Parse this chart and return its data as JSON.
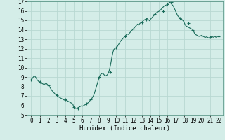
{
  "xlabel": "Humidex (Indice chaleur)",
  "bg_color": "#d4ede8",
  "grid_color": "#b8d8d2",
  "line_color": "#1a6b5a",
  "marker_color": "#1a6b5a",
  "xlim": [
    -0.5,
    22.5
  ],
  "ylim": [
    5,
    17
  ],
  "xticks": [
    0,
    1,
    2,
    3,
    4,
    5,
    6,
    7,
    8,
    9,
    10,
    11,
    12,
    13,
    14,
    15,
    16,
    17,
    18,
    19,
    20,
    21,
    22
  ],
  "yticks": [
    5,
    6,
    7,
    8,
    9,
    10,
    11,
    12,
    13,
    14,
    15,
    16,
    17
  ],
  "x": [
    0.0,
    0.1,
    0.2,
    0.3,
    0.4,
    0.5,
    0.6,
    0.7,
    0.8,
    0.9,
    1.0,
    1.1,
    1.2,
    1.3,
    1.4,
    1.5,
    1.6,
    1.7,
    1.8,
    1.9,
    2.0,
    2.1,
    2.2,
    2.3,
    2.4,
    2.5,
    2.6,
    2.7,
    2.8,
    2.9,
    3.0,
    3.1,
    3.2,
    3.3,
    3.4,
    3.5,
    3.6,
    3.7,
    3.8,
    3.9,
    4.0,
    4.1,
    4.2,
    4.3,
    4.4,
    4.5,
    4.6,
    4.7,
    4.8,
    4.9,
    5.0,
    5.1,
    5.2,
    5.3,
    5.4,
    5.5,
    5.6,
    5.7,
    5.8,
    5.9,
    6.0,
    6.1,
    6.2,
    6.3,
    6.4,
    6.5,
    6.6,
    6.7,
    6.8,
    6.9,
    7.0,
    7.1,
    7.2,
    7.3,
    7.4,
    7.5,
    7.6,
    7.7,
    7.8,
    7.9,
    8.0,
    8.1,
    8.2,
    8.3,
    8.4,
    8.5,
    8.6,
    8.7,
    8.8,
    8.9,
    9.0,
    9.1,
    9.2,
    9.3,
    9.4,
    9.5,
    9.6,
    9.7,
    9.8,
    9.9,
    10.0,
    10.1,
    10.2,
    10.3,
    10.4,
    10.5,
    10.6,
    10.7,
    10.8,
    10.9,
    11.0,
    11.1,
    11.2,
    11.3,
    11.4,
    11.5,
    11.6,
    11.7,
    11.8,
    11.9,
    12.0,
    12.1,
    12.2,
    12.3,
    12.4,
    12.5,
    12.6,
    12.7,
    12.8,
    12.9,
    13.0,
    13.1,
    13.2,
    13.3,
    13.4,
    13.5,
    13.6,
    13.7,
    13.8,
    13.9,
    14.0,
    14.1,
    14.2,
    14.3,
    14.4,
    14.5,
    14.6,
    14.7,
    14.8,
    14.9,
    15.0,
    15.1,
    15.2,
    15.3,
    15.4,
    15.5,
    15.6,
    15.7,
    15.8,
    15.9,
    16.0,
    16.1,
    16.2,
    16.3,
    16.4,
    16.5,
    16.6,
    16.7,
    16.8,
    16.9,
    17.0,
    17.1,
    17.2,
    17.3,
    17.4,
    17.5,
    17.6,
    17.7,
    17.8,
    17.9,
    18.0,
    18.1,
    18.2,
    18.3,
    18.4,
    18.5,
    18.6,
    18.7,
    18.8,
    18.9,
    19.0,
    19.1,
    19.2,
    19.3,
    19.4,
    19.5,
    19.6,
    19.7,
    19.8,
    19.9,
    20.0,
    20.1,
    20.2,
    20.3,
    20.4,
    20.5,
    20.6,
    20.7,
    20.8,
    20.9,
    21.0,
    21.1,
    21.2,
    21.3,
    21.4,
    21.5,
    21.6,
    21.7,
    21.8,
    21.9,
    22.0
  ],
  "y": [
    8.7,
    8.8,
    8.95,
    9.05,
    9.1,
    9.0,
    8.85,
    8.7,
    8.6,
    8.5,
    8.5,
    8.45,
    8.35,
    8.3,
    8.25,
    8.2,
    8.25,
    8.3,
    8.3,
    8.2,
    8.1,
    8.0,
    7.9,
    7.75,
    7.6,
    7.5,
    7.4,
    7.3,
    7.2,
    7.1,
    7.1,
    7.0,
    6.9,
    6.85,
    6.8,
    6.75,
    6.7,
    6.65,
    6.6,
    6.55,
    6.6,
    6.55,
    6.5,
    6.45,
    6.4,
    6.35,
    6.3,
    6.25,
    6.2,
    6.1,
    5.8,
    5.7,
    5.65,
    5.65,
    5.7,
    5.75,
    5.8,
    5.85,
    5.9,
    5.95,
    5.9,
    5.95,
    6.0,
    6.05,
    6.1,
    6.15,
    6.2,
    6.3,
    6.4,
    6.5,
    6.6,
    6.7,
    6.85,
    7.0,
    7.2,
    7.5,
    7.8,
    8.1,
    8.4,
    8.7,
    9.0,
    9.2,
    9.3,
    9.35,
    9.4,
    9.3,
    9.2,
    9.1,
    9.15,
    9.2,
    9.3,
    9.5,
    9.8,
    10.2,
    10.7,
    11.2,
    11.6,
    11.9,
    12.0,
    12.05,
    12.1,
    12.2,
    12.35,
    12.5,
    12.65,
    12.8,
    12.9,
    13.0,
    13.1,
    13.2,
    13.3,
    13.4,
    13.5,
    13.55,
    13.5,
    13.6,
    13.7,
    13.8,
    13.9,
    14.0,
    14.1,
    14.2,
    14.3,
    14.4,
    14.5,
    14.6,
    14.5,
    14.6,
    14.7,
    14.75,
    14.8,
    14.9,
    15.0,
    15.05,
    15.1,
    15.15,
    15.2,
    15.1,
    15.05,
    14.95,
    15.1,
    15.2,
    15.3,
    15.4,
    15.5,
    15.6,
    15.7,
    15.8,
    15.85,
    15.9,
    15.95,
    16.0,
    16.1,
    16.2,
    16.3,
    16.4,
    16.5,
    16.55,
    16.6,
    16.5,
    16.7,
    16.8,
    16.85,
    16.9,
    16.8,
    16.7,
    16.6,
    16.5,
    16.3,
    16.1,
    15.9,
    15.7,
    15.5,
    15.4,
    15.3,
    15.25,
    15.2,
    15.1,
    15.0,
    14.9,
    14.7,
    14.5,
    14.4,
    14.35,
    14.3,
    14.25,
    14.2,
    14.15,
    14.1,
    14.05,
    14.0,
    13.8,
    13.6,
    13.5,
    13.45,
    13.4,
    13.35,
    13.3,
    13.3,
    13.35,
    13.4,
    13.35,
    13.3,
    13.25,
    13.2,
    13.2,
    13.25,
    13.2,
    13.15,
    13.1,
    13.2,
    13.25,
    13.3,
    13.25,
    13.2,
    13.25,
    13.3,
    13.2,
    13.25,
    13.3,
    13.3
  ],
  "marker_x": [
    0,
    1,
    2,
    3,
    4,
    5,
    5.5,
    6.5,
    7,
    8,
    9.3,
    10,
    11,
    12,
    13,
    13.5,
    14.5,
    15.5,
    16,
    16.5,
    17.5,
    18.5,
    19,
    20,
    21,
    22
  ],
  "marker_y": [
    8.7,
    8.5,
    8.1,
    7.1,
    6.6,
    5.8,
    5.65,
    6.2,
    6.6,
    9.0,
    9.5,
    12.1,
    13.3,
    14.1,
    14.8,
    15.1,
    15.7,
    16.0,
    16.7,
    16.9,
    15.25,
    14.7,
    14.0,
    13.35,
    13.2,
    13.3
  ]
}
